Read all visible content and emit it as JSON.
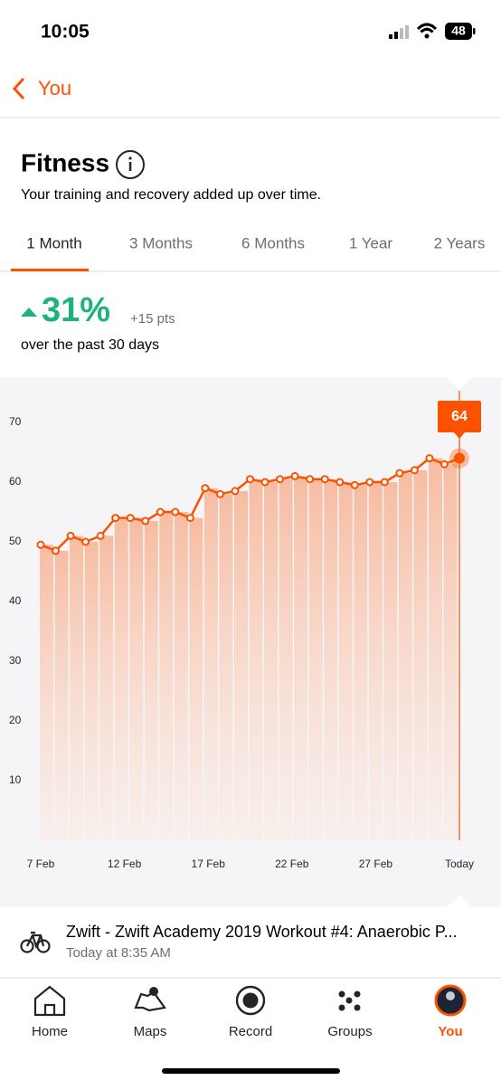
{
  "status_bar": {
    "time": "10:05",
    "battery": "48"
  },
  "nav": {
    "back_label": "You"
  },
  "header": {
    "title": "Fitness",
    "subtitle": "Your training and recovery added up over time."
  },
  "tabs": {
    "items": [
      "1 Month",
      "3 Months",
      "6 Months",
      "1 Year",
      "2 Years"
    ],
    "selected": 0
  },
  "summary": {
    "change": "31%",
    "points": "+15 pts",
    "period": "over the past 30 days"
  },
  "chart_data": {
    "type": "line",
    "color": "#fc5200",
    "values": [
      49.5,
      48.5,
      51,
      50,
      51,
      54,
      54,
      53.5,
      55,
      55,
      54,
      59,
      58,
      58.5,
      60.5,
      60,
      60.5,
      61,
      60.5,
      60.5,
      60,
      59.5,
      60,
      60,
      61.5,
      62,
      64,
      63,
      64
    ],
    "x_labels": [
      "7 Feb",
      "12 Feb",
      "17 Feb",
      "22 Feb",
      "27 Feb",
      "Today"
    ],
    "ylim": [
      0,
      75
    ],
    "yticks": [
      10,
      20,
      30,
      40,
      50,
      60,
      70
    ]
  },
  "activity": {
    "title": "Zwift - Zwift Academy 2019 Workout #4: Anaerobic P...",
    "time": "Today at 8:35 AM"
  },
  "tab_bar": {
    "items": [
      "Home",
      "Maps",
      "Record",
      "Groups",
      "You"
    ],
    "selected": 4
  }
}
